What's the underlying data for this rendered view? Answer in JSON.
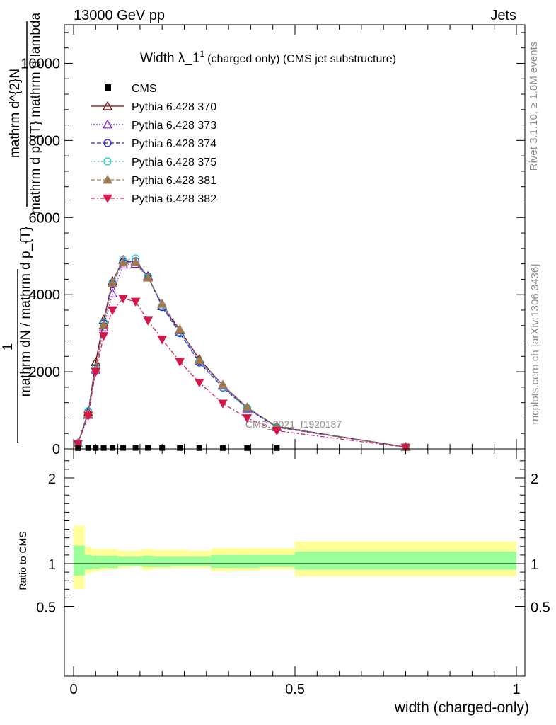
{
  "header": {
    "energy": "13000 GeV pp",
    "category": "Jets"
  },
  "side_labels": {
    "rivet": "Rivet 3.1.10, ≥ 1.8M events",
    "mcplots": "mcplots.cern.ch [arXiv:1306.3436]"
  },
  "watermark": "CMS_2021_I1920187",
  "chart_data": {
    "type": "line",
    "title_main": "Width λ_1",
    "title_sup": "1",
    "title_note": "(charged only) (CMS jet substructure)",
    "ylabel_lines": [
      "mathrm d^{2}N",
      "mathrm d p_{T} mathrm d lambda",
      "1",
      "mathrm dN / mathrm d p_{T}"
    ],
    "xlabel": "width (charged-only)",
    "ratio_ylabel": "Ratio to CMS",
    "xlim": [
      -0.02,
      1.04
    ],
    "ylim": [
      0,
      11000
    ],
    "main_yticks": [
      0,
      2000,
      4000,
      6000,
      8000,
      10000
    ],
    "main_yticklabels": [
      "0",
      "2000",
      "4000",
      "6000",
      "8000",
      "10000"
    ],
    "xticks": [
      0,
      0.5,
      1
    ],
    "xticklabels": [
      "0",
      "0.5",
      "1"
    ],
    "ratio_ylim": [
      0.35,
      2.25
    ],
    "ratio_yticks": [
      0.5,
      1,
      2
    ],
    "ratio_yticklabels": [
      "0.5",
      "1",
      "2"
    ],
    "x": [
      0.01,
      0.033,
      0.05,
      0.068,
      0.088,
      0.112,
      0.14,
      0.168,
      0.2,
      0.24,
      0.284,
      0.337,
      0.392,
      0.459,
      0.75
    ],
    "data": {
      "name": "CMS",
      "values": [
        3,
        5,
        6,
        7,
        8,
        8,
        8,
        8,
        7,
        6,
        5,
        4,
        3,
        2,
        1
      ]
    },
    "series": [
      {
        "name": "Pythia 6.428 370",
        "color": "#7f0000",
        "marker": "triangle-open",
        "dash": "",
        "values": [
          150,
          950,
          2250,
          3350,
          4350,
          4900,
          4850,
          4480,
          3700,
          3080,
          2330,
          1650,
          1070,
          580,
          50
        ]
      },
      {
        "name": "Pythia 6.428 373",
        "color": "#7a1fd6",
        "marker": "triangle-open",
        "dash": "2,2",
        "values": [
          140,
          880,
          2050,
          3150,
          4030,
          4780,
          4800,
          4450,
          3720,
          3030,
          2280,
          1640,
          1040,
          560,
          45
        ]
      },
      {
        "name": "Pythia 6.428 374",
        "color": "#1c1ce0",
        "marker": "circle-open",
        "dash": "6,3",
        "values": [
          145,
          960,
          2100,
          3250,
          4270,
          4850,
          4870,
          4470,
          3680,
          3000,
          2240,
          1590,
          1050,
          560,
          45
        ]
      },
      {
        "name": "Pythia 6.428 375",
        "color": "#21c8c8",
        "marker": "circle-open",
        "dash": "2,3",
        "values": [
          150,
          980,
          2110,
          3280,
          4320,
          4900,
          4940,
          4450,
          3700,
          3020,
          2260,
          1600,
          1060,
          570,
          45
        ]
      },
      {
        "name": "Pythia 6.428 381",
        "color": "#a07850",
        "marker": "triangle-filled",
        "dash": "6,3",
        "values": [
          140,
          900,
          2080,
          3220,
          4300,
          4830,
          4850,
          4440,
          3760,
          3100,
          2300,
          1660,
          1080,
          570,
          45
        ]
      },
      {
        "name": "Pythia 6.428 382",
        "color": "#d6174a",
        "marker": "triangledown-filled",
        "dash": "6,3,2,3",
        "values": [
          130,
          860,
          2000,
          2930,
          3600,
          3900,
          3820,
          3330,
          2840,
          2260,
          1720,
          1180,
          800,
          470,
          40
        ]
      }
    ],
    "band_edges": [
      0,
      0.025,
      0.04,
      0.06,
      0.075,
      0.1,
      0.125,
      0.155,
      0.18,
      0.22,
      0.26,
      0.31,
      0.36,
      0.42,
      0.5,
      1.0
    ],
    "band_yellow": [
      [
        0.7,
        1.44
      ],
      [
        0.88,
        1.2
      ],
      [
        0.91,
        1.17
      ],
      [
        0.92,
        1.17
      ],
      [
        0.93,
        1.17
      ],
      [
        0.95,
        1.15
      ],
      [
        0.96,
        1.15
      ],
      [
        0.92,
        1.17
      ],
      [
        0.94,
        1.16
      ],
      [
        0.95,
        1.16
      ],
      [
        0.95,
        1.15
      ],
      [
        0.91,
        1.18
      ],
      [
        0.92,
        1.18
      ],
      [
        0.93,
        1.18
      ],
      [
        0.85,
        1.26
      ]
    ],
    "band_green": [
      [
        0.86,
        1.21
      ],
      [
        0.93,
        1.1
      ],
      [
        0.94,
        1.09
      ],
      [
        0.95,
        1.09
      ],
      [
        0.95,
        1.09
      ],
      [
        0.97,
        1.08
      ],
      [
        0.97,
        1.08
      ],
      [
        0.96,
        1.09
      ],
      [
        0.96,
        1.08
      ],
      [
        0.97,
        1.08
      ],
      [
        0.97,
        1.08
      ],
      [
        0.95,
        1.1
      ],
      [
        0.95,
        1.1
      ],
      [
        0.96,
        1.1
      ],
      [
        0.93,
        1.14
      ]
    ],
    "colors": {
      "yellow_band": "#ffff99",
      "green_band": "#99ff99",
      "data": "#000000"
    },
    "grid": false,
    "legend_position": "top-left"
  }
}
